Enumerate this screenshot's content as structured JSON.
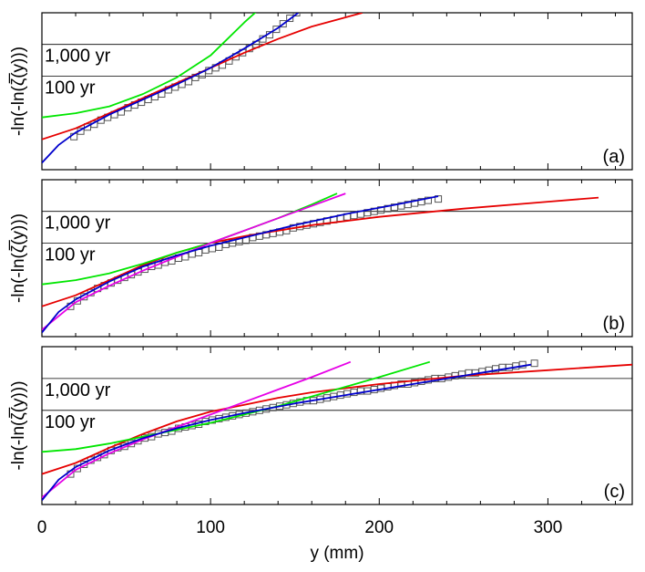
{
  "chart_data": {
    "type": "line",
    "xlabel": "y (mm)",
    "ylabel": "-ln(-ln(ζ̅(y)))",
    "xlim": [
      0,
      350
    ],
    "x_ticks": [
      0,
      100,
      200,
      300
    ],
    "x_tick_labels": [
      "0",
      "100",
      "200",
      "300"
    ],
    "ylim": [
      -2.2,
      9.2
    ],
    "grid": false,
    "return_levels": [
      {
        "label": "100 yr",
        "y": 4.6
      },
      {
        "label": "1,000 yr",
        "y": 6.9
      }
    ],
    "colors": {
      "red": "#e60000",
      "green": "#00e600",
      "blue": "#0000cc",
      "magenta": "#e600e6",
      "markers": "#555555"
    },
    "panels": [
      {
        "label": "(a)",
        "series": [
          {
            "color": "red",
            "x": [
              0,
              20,
              40,
              60,
              80,
              100,
              120,
              140,
              160,
              190
            ],
            "y": [
              0.0,
              0.8,
              1.9,
              3.0,
              4.1,
              5.2,
              6.3,
              7.3,
              8.2,
              9.2
            ]
          },
          {
            "color": "green",
            "x": [
              0,
              20,
              40,
              60,
              80,
              100,
              110,
              120,
              130
            ],
            "y": [
              1.6,
              1.9,
              2.4,
              3.3,
              4.5,
              6.1,
              7.3,
              8.5,
              9.6
            ]
          },
          {
            "color": "blue",
            "x": [
              0,
              10,
              20,
              40,
              60,
              80,
              100,
              120,
              140,
              152
            ],
            "y": [
              -1.7,
              -0.4,
              0.5,
              1.8,
              2.9,
              4.0,
              5.2,
              6.6,
              8.1,
              9.2
            ]
          }
        ],
        "markers": {
          "x": [
            19,
            23,
            27,
            31,
            35,
            39,
            43,
            47,
            51,
            55,
            59,
            63,
            67,
            71,
            75,
            79,
            83,
            87,
            91,
            95,
            99,
            103,
            107,
            111,
            115,
            119,
            123,
            127,
            131,
            135,
            139,
            143,
            147,
            151
          ],
          "y": [
            0.2,
            0.6,
            0.9,
            1.1,
            1.4,
            1.6,
            1.8,
            2.0,
            2.3,
            2.5,
            2.7,
            2.9,
            3.1,
            3.3,
            3.6,
            3.8,
            4.0,
            4.2,
            4.5,
            4.7,
            5.0,
            5.2,
            5.4,
            5.7,
            6.0,
            6.3,
            6.6,
            6.9,
            7.3,
            7.6,
            8.0,
            8.4,
            8.8,
            9.2
          ]
        }
      },
      {
        "label": "(b)",
        "series": [
          {
            "color": "red",
            "x": [
              0,
              20,
              40,
              60,
              80,
              100,
              120,
              140,
              160,
              200,
              250,
              300,
              330
            ],
            "y": [
              0.0,
              0.8,
              1.9,
              3.0,
              3.9,
              4.6,
              5.1,
              5.5,
              5.9,
              6.5,
              7.1,
              7.6,
              7.9
            ]
          },
          {
            "color": "green",
            "x": [
              0,
              20,
              40,
              60,
              80,
              100,
              120,
              140,
              160,
              175
            ],
            "y": [
              1.6,
              1.9,
              2.4,
              3.1,
              3.9,
              4.6,
              5.5,
              6.4,
              7.4,
              8.2
            ]
          },
          {
            "color": "magenta",
            "x": [
              0,
              20,
              40,
              60,
              80,
              100,
              120,
              140,
              160,
              180
            ],
            "y": [
              -1.7,
              0.3,
              1.5,
              2.6,
              3.6,
              4.6,
              5.5,
              6.4,
              7.3,
              8.2
            ]
          },
          {
            "color": "blue",
            "x": [
              0,
              10,
              20,
              40,
              60,
              80,
              100,
              120,
              150,
              180,
              210,
              235
            ],
            "y": [
              -1.9,
              -0.4,
              0.5,
              1.8,
              2.9,
              3.7,
              4.4,
              5.0,
              5.9,
              6.7,
              7.4,
              8.0
            ]
          }
        ],
        "markers": {
          "x": [
            17,
            21,
            25,
            29,
            33,
            37,
            41,
            45,
            49,
            53,
            57,
            61,
            65,
            69,
            73,
            77,
            81,
            85,
            89,
            93,
            97,
            101,
            105,
            109,
            113,
            117,
            121,
            125,
            129,
            133,
            137,
            141,
            145,
            149,
            153,
            157,
            161,
            165,
            169,
            173,
            177,
            181,
            185,
            189,
            193,
            197,
            201,
            205,
            209,
            213,
            217,
            221,
            225,
            229,
            235
          ],
          "y": [
            0.0,
            0.4,
            0.7,
            1.0,
            1.3,
            1.5,
            1.7,
            1.9,
            2.1,
            2.3,
            2.5,
            2.7,
            2.9,
            3.0,
            3.2,
            3.3,
            3.5,
            3.6,
            3.8,
            3.9,
            4.1,
            4.2,
            4.3,
            4.5,
            4.6,
            4.7,
            4.8,
            5.0,
            5.1,
            5.2,
            5.3,
            5.4,
            5.5,
            5.7,
            5.8,
            5.9,
            6.0,
            6.1,
            6.2,
            6.3,
            6.4,
            6.5,
            6.6,
            6.7,
            6.8,
            6.9,
            7.0,
            7.1,
            7.2,
            7.3,
            7.4,
            7.5,
            7.6,
            7.7,
            7.8
          ]
        }
      },
      {
        "label": "(c)",
        "series": [
          {
            "color": "red",
            "x": [
              0,
              20,
              40,
              60,
              80,
              100,
              120,
              140,
              160,
              200,
              250,
              300,
              350
            ],
            "y": [
              0.0,
              0.8,
              1.9,
              2.9,
              3.8,
              4.5,
              5.0,
              5.5,
              5.9,
              6.5,
              7.1,
              7.5,
              7.9
            ]
          },
          {
            "color": "green",
            "x": [
              0,
              20,
              40,
              60,
              80,
              100,
              120,
              140,
              160,
              180,
              200,
              230
            ],
            "y": [
              1.6,
              1.8,
              2.2,
              2.7,
              3.2,
              3.7,
              4.3,
              4.9,
              5.6,
              6.3,
              7.0,
              8.1
            ]
          },
          {
            "color": "magenta",
            "x": [
              0,
              20,
              40,
              60,
              80,
              100,
              120,
              140,
              160,
              183
            ],
            "y": [
              -1.7,
              0.3,
              1.5,
              2.5,
              3.4,
              4.3,
              5.2,
              6.1,
              7.0,
              8.1
            ]
          },
          {
            "color": "blue",
            "x": [
              0,
              10,
              20,
              40,
              60,
              80,
              100,
              120,
              150,
              180,
              220,
              260,
              290
            ],
            "y": [
              -1.9,
              -0.4,
              0.5,
              1.7,
              2.6,
              3.3,
              3.9,
              4.4,
              5.1,
              5.7,
              6.5,
              7.3,
              7.9
            ]
          }
        ],
        "markers": {
          "x": [
            17,
            21,
            25,
            29,
            33,
            37,
            41,
            45,
            49,
            53,
            57,
            61,
            65,
            69,
            73,
            77,
            81,
            85,
            89,
            93,
            97,
            101,
            105,
            109,
            113,
            117,
            121,
            125,
            129,
            133,
            137,
            141,
            145,
            149,
            153,
            157,
            161,
            165,
            169,
            173,
            177,
            181,
            185,
            189,
            193,
            197,
            201,
            205,
            209,
            213,
            217,
            221,
            225,
            229,
            233,
            237,
            241,
            245,
            249,
            253,
            257,
            261,
            265,
            269,
            273,
            277,
            281,
            285,
            292
          ],
          "y": [
            0.0,
            0.4,
            0.7,
            1.0,
            1.2,
            1.4,
            1.7,
            1.9,
            2.0,
            2.2,
            2.4,
            2.6,
            2.7,
            2.9,
            3.0,
            3.1,
            3.3,
            3.4,
            3.5,
            3.6,
            3.8,
            3.9,
            4.0,
            4.1,
            4.2,
            4.3,
            4.4,
            4.5,
            4.6,
            4.7,
            4.8,
            4.9,
            5.0,
            5.1,
            5.2,
            5.3,
            5.3,
            5.4,
            5.5,
            5.6,
            5.7,
            5.8,
            5.9,
            6.0,
            6.0,
            6.1,
            6.2,
            6.3,
            6.4,
            6.5,
            6.5,
            6.6,
            6.7,
            6.8,
            6.9,
            6.9,
            7.0,
            7.1,
            7.2,
            7.3,
            7.3,
            7.4,
            7.5,
            7.6,
            7.7,
            7.7,
            7.8,
            7.9,
            8.0
          ]
        }
      }
    ]
  }
}
